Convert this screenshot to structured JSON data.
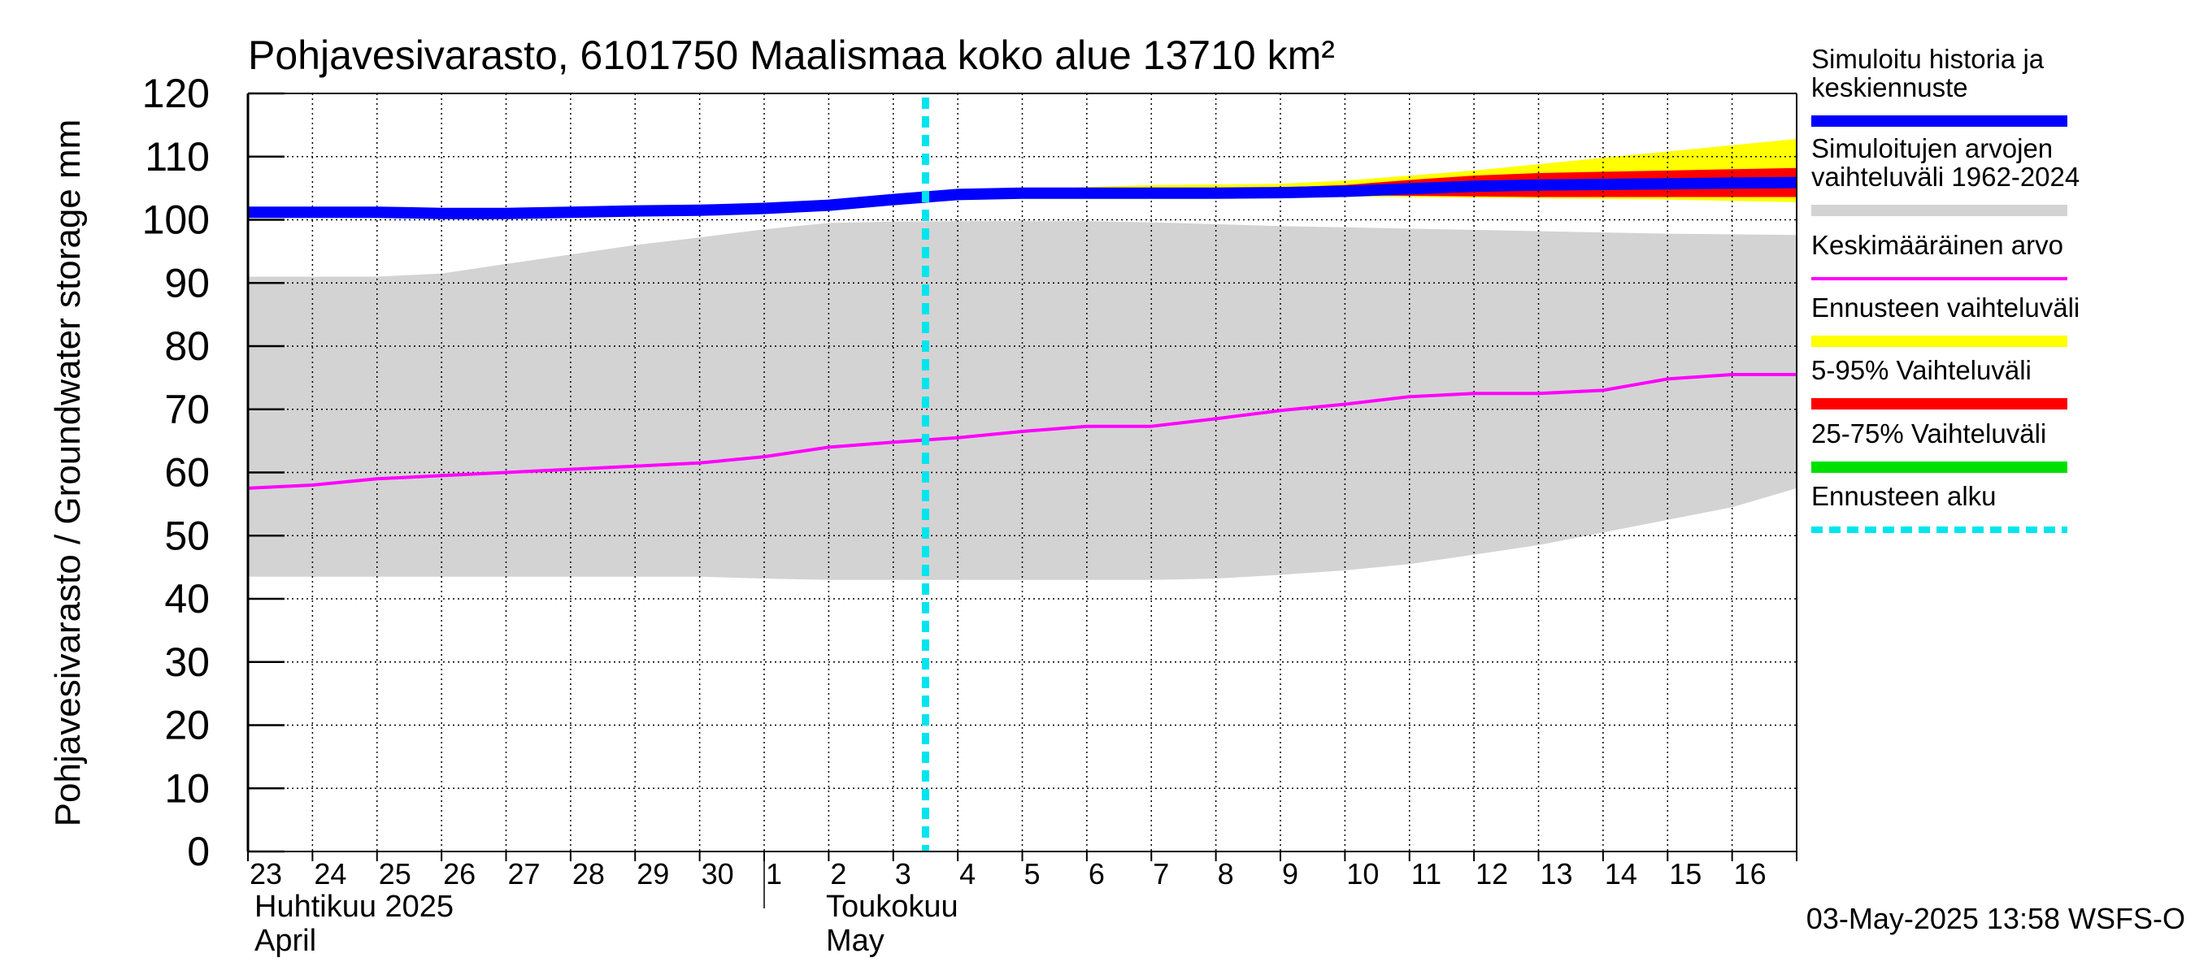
{
  "chart_data": {
    "type": "area",
    "title": "Pohjavesivarasto, 6101750 Maalismaa koko alue 13710 km²",
    "ylabel": "Pohjavesivarasto / Groundwater storage   mm",
    "ylim": [
      0,
      120
    ],
    "yticks": [
      "0",
      "10",
      "20",
      "30",
      "40",
      "50",
      "60",
      "70",
      "80",
      "90",
      "100",
      "110",
      "120"
    ],
    "grid": true,
    "day_labels": [
      "23",
      "24",
      "25",
      "26",
      "27",
      "28",
      "29",
      "30",
      "1",
      "2",
      "3",
      "4",
      "5",
      "6",
      "7",
      "8",
      "9",
      "10",
      "11",
      "12",
      "13",
      "14",
      "15",
      "16"
    ],
    "month_labels": [
      {
        "fi": "Huhtikuu  2025",
        "en": "April"
      },
      {
        "fi": "Toukokuu",
        "en": "May"
      }
    ],
    "x": [
      0,
      1,
      2,
      3,
      4,
      5,
      6,
      7,
      8,
      9,
      10,
      11,
      12,
      13,
      14,
      15,
      16,
      17,
      18,
      19,
      20,
      21,
      22,
      23,
      24
    ],
    "forecast_start": 10.5,
    "series": [
      {
        "name": "Simuloitujen arvojen vaihteluväli 1962-2024",
        "kind": "band",
        "color": "#d3d3d3",
        "lower": [
          43.5,
          43.5,
          43.5,
          43.5,
          43.5,
          43.5,
          43.5,
          43.5,
          43.2,
          43,
          43,
          43,
          43,
          43,
          43,
          43.2,
          43.8,
          44.5,
          45.5,
          47,
          48.5,
          50.5,
          52.5,
          54.5,
          57.5
        ],
        "upper": [
          91,
          91,
          91,
          91.5,
          93,
          94.5,
          96,
          97.2,
          98.5,
          99.5,
          99.7,
          99.8,
          99.8,
          99.8,
          99.6,
          99.3,
          99,
          98.8,
          98.6,
          98.4,
          98.2,
          98,
          97.8,
          97.7,
          97.6
        ]
      },
      {
        "name": "Ennusteen vaihteluväli",
        "kind": "band",
        "color": "#ffff00",
        "lower": [
          null,
          null,
          null,
          null,
          null,
          null,
          null,
          null,
          null,
          null,
          null,
          103.6,
          104,
          104,
          104,
          103.9,
          103.8,
          103.7,
          103.6,
          103.5,
          103.4,
          103.3,
          103.2,
          103,
          102.8
        ],
        "upper": [
          null,
          null,
          null,
          null,
          null,
          null,
          null,
          null,
          null,
          null,
          null,
          103.6,
          104.6,
          105.2,
          105.5,
          105.6,
          105.7,
          106.2,
          107,
          107.8,
          108.8,
          109.8,
          110.8,
          111.8,
          112.8
        ]
      },
      {
        "name": "5-95% Vaihteluväli",
        "kind": "band",
        "color": "#ff0000",
        "lower": [
          null,
          null,
          null,
          null,
          null,
          null,
          null,
          null,
          null,
          null,
          null,
          103.6,
          104,
          104,
          104,
          104,
          103.9,
          103.9,
          103.8,
          103.7,
          103.6,
          103.6,
          103.6,
          103.6,
          103.6
        ],
        "upper": [
          null,
          null,
          null,
          null,
          null,
          null,
          null,
          null,
          null,
          null,
          null,
          103.6,
          104.4,
          104.8,
          105,
          105,
          105.1,
          105.5,
          106.3,
          107,
          107.4,
          107.6,
          107.8,
          108,
          108.2
        ]
      },
      {
        "name": "25-75% Vaihteluväli",
        "kind": "band",
        "color": "#00e000",
        "lower": [
          null,
          null,
          null,
          null,
          null,
          null,
          null,
          null,
          null,
          null,
          null,
          103.6,
          104.1,
          104.2,
          104.2,
          104.2,
          104.3,
          104.4,
          104.6,
          104.8,
          104.9,
          105,
          105.1,
          105.1,
          105.2
        ],
        "upper": [
          null,
          null,
          null,
          null,
          null,
          null,
          null,
          null,
          null,
          null,
          null,
          103.6,
          104.2,
          104.3,
          104.4,
          104.4,
          104.6,
          104.8,
          105.2,
          105.6,
          105.8,
          106,
          106.1,
          106.2,
          106.3
        ]
      },
      {
        "name": "Keskimääräinen arvo",
        "kind": "line",
        "color": "#ff00ff",
        "width": 4,
        "values": [
          57.5,
          58,
          59,
          59.5,
          60,
          60.5,
          61,
          61.5,
          62.5,
          64,
          64.8,
          65.5,
          66.5,
          67.3,
          67.3,
          68.5,
          69.8,
          70.8,
          72,
          72.5,
          72.5,
          73,
          74.8,
          75.5,
          75.5
        ]
      },
      {
        "name": "Simuloitu historia ja keskiennuste",
        "kind": "line",
        "color": "#0000ff",
        "width": 14,
        "values": [
          101.2,
          101.2,
          101.2,
          101,
          101,
          101.2,
          101.4,
          101.5,
          101.8,
          102.3,
          103.2,
          104,
          104.2,
          104.2,
          104.2,
          104.2,
          104.3,
          104.5,
          104.9,
          105.3,
          105.5,
          105.6,
          105.7,
          105.8,
          105.9
        ]
      }
    ],
    "legend": {
      "placement": "right",
      "entries": [
        {
          "label_lines": [
            "Simuloitu historia ja",
            "keskiennuste"
          ],
          "color": "#0000ff",
          "style": "solid"
        },
        {
          "label_lines": [
            "Simuloitujen arvojen",
            "vaihteluväli 1962-2024"
          ],
          "color": "#d3d3d3",
          "style": "solid"
        },
        {
          "label_lines": [
            "Keskimääräinen arvo"
          ],
          "color": "#ff00ff",
          "style": "thin"
        },
        {
          "label_lines": [
            "Ennusteen vaihteluväli"
          ],
          "color": "#ffff00",
          "style": "solid"
        },
        {
          "label_lines": [
            "5-95% Vaihteluväli"
          ],
          "color": "#ff0000",
          "style": "solid"
        },
        {
          "label_lines": [
            "25-75% Vaihteluväli"
          ],
          "color": "#00e000",
          "style": "solid"
        },
        {
          "label_lines": [
            "Ennusteen alku"
          ],
          "color": "#00e5ee",
          "style": "dashed"
        }
      ]
    },
    "forecast_start_color": "#00e5ee",
    "footer": "03-May-2025 13:58 WSFS-O"
  }
}
